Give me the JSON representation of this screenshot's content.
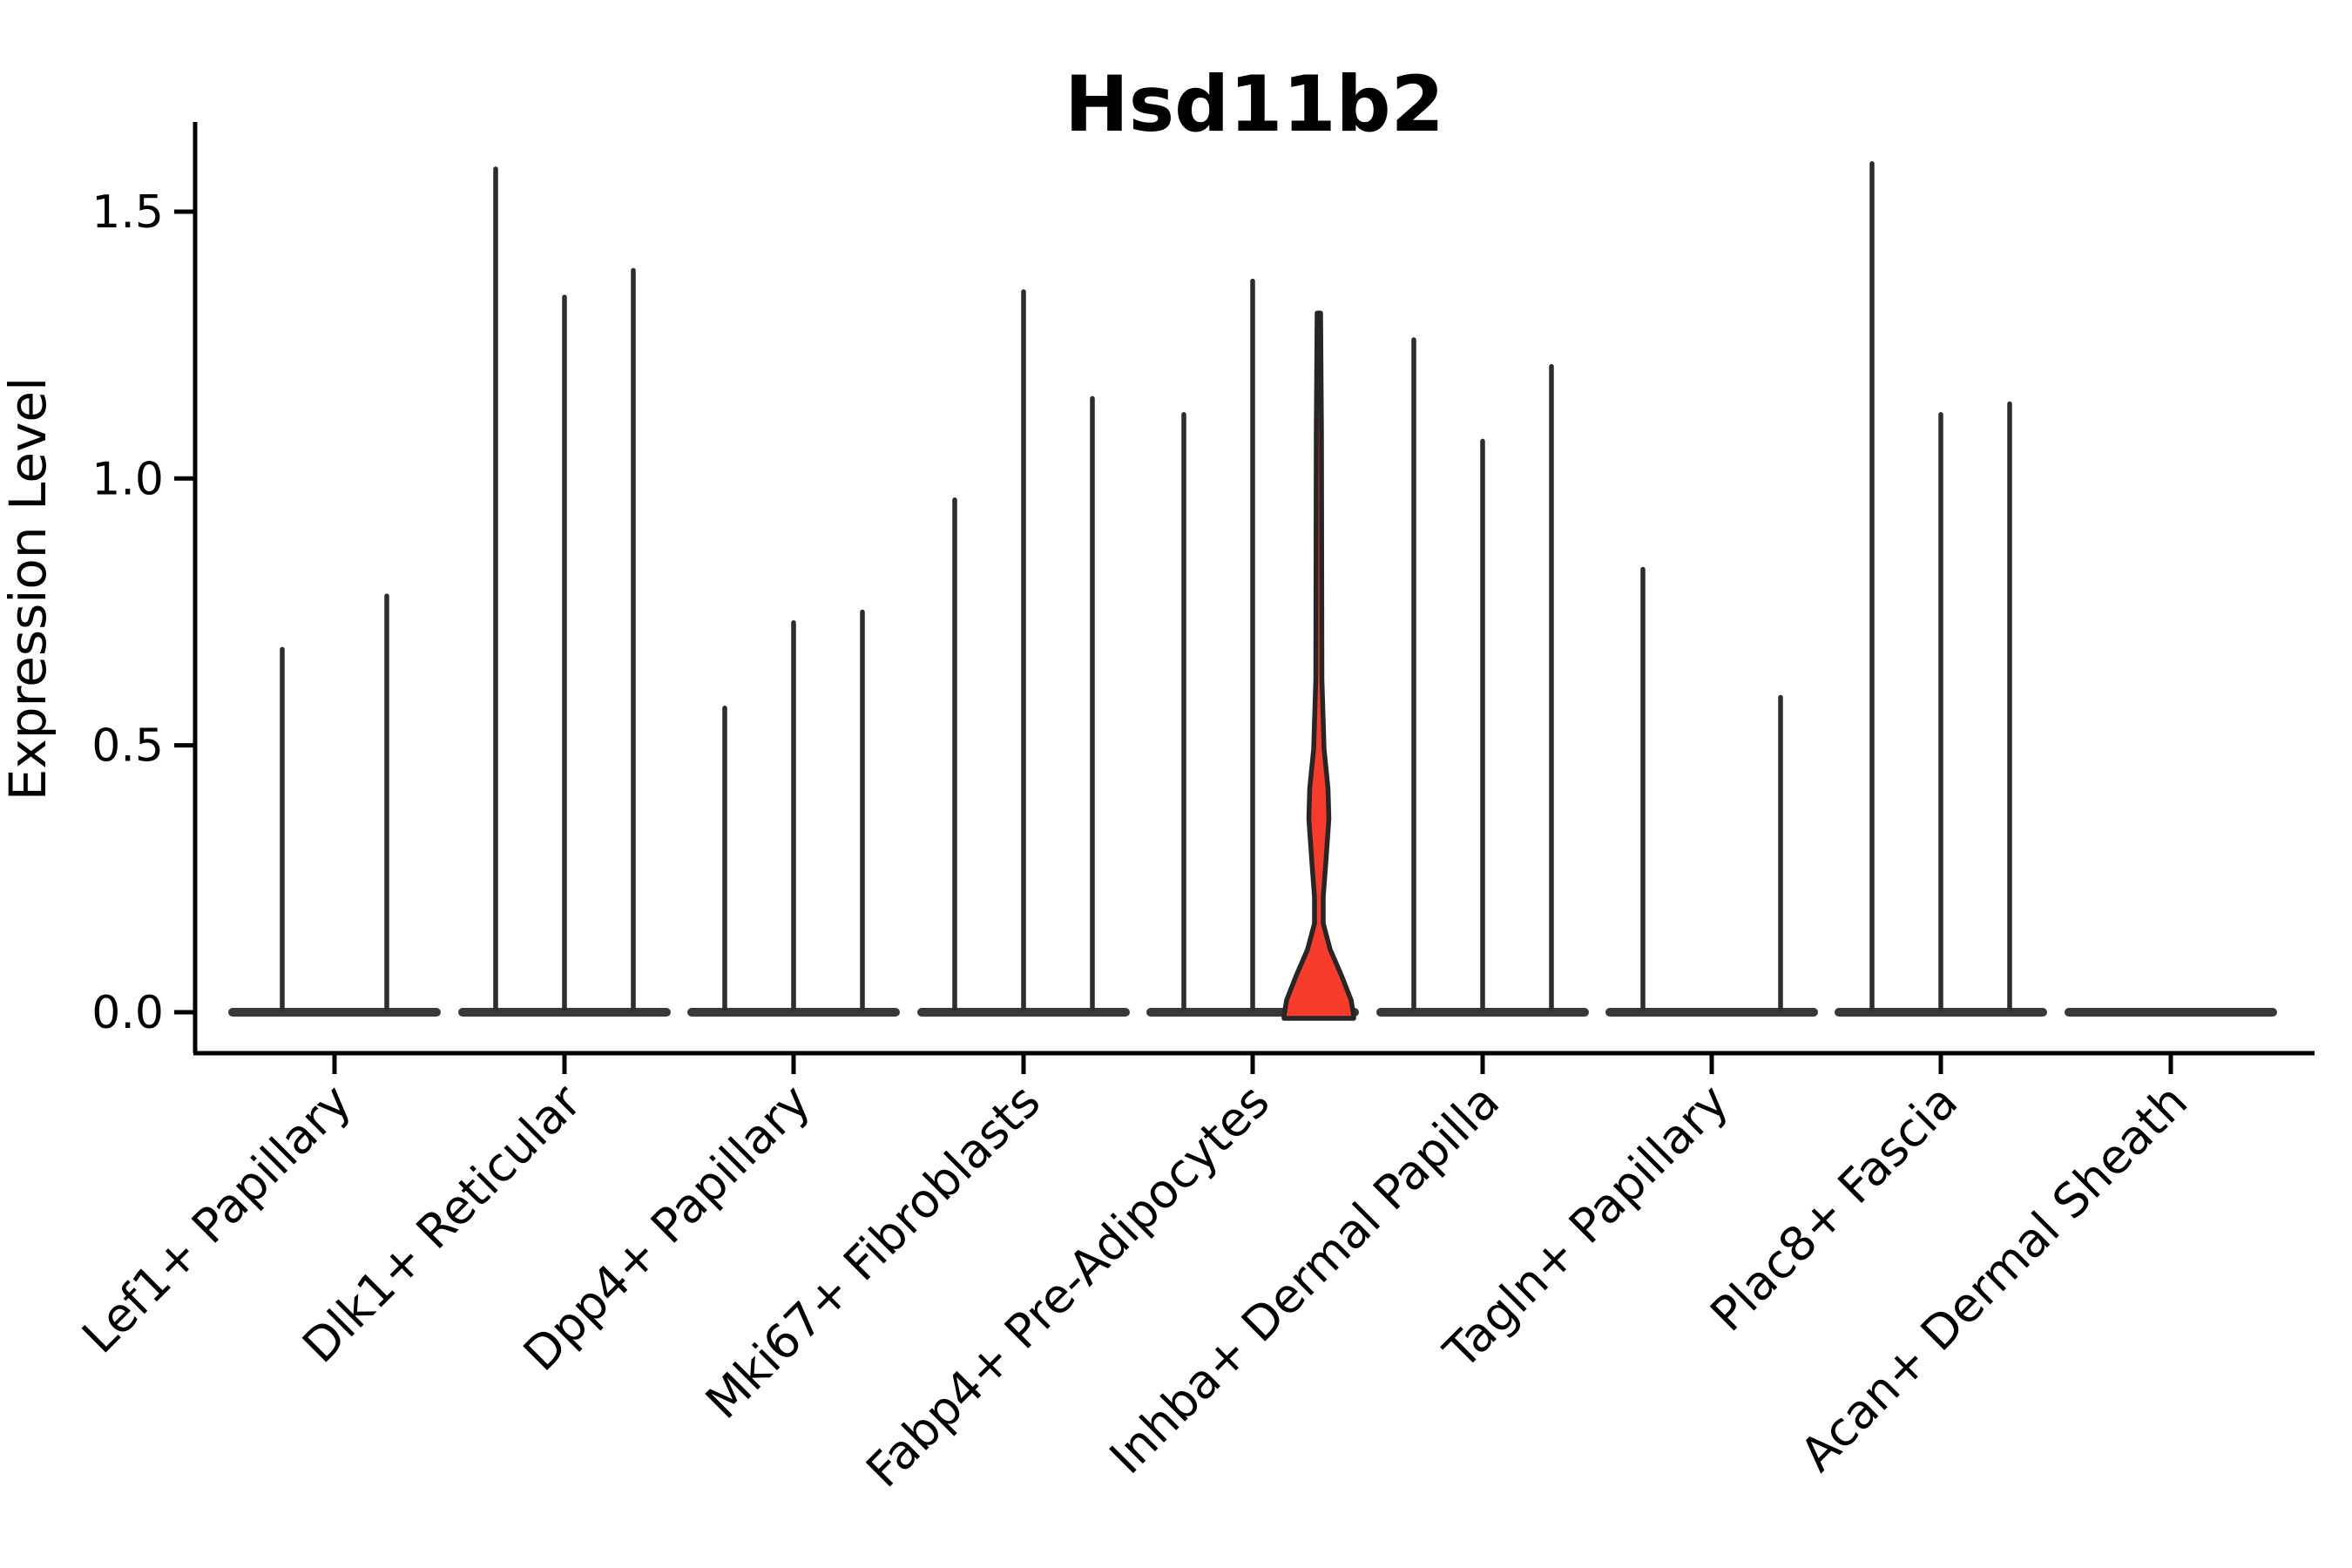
{
  "chart": {
    "title": "Hsd11b2",
    "ylabel": "Expression Level"
  },
  "chart_data": {
    "type": "violin",
    "title": "Hsd11b2",
    "xlabel": "",
    "ylabel": "Expression Level",
    "ylim": [
      -0.08,
      1.67
    ],
    "yticks": [
      "0.0",
      "0.5",
      "1.0",
      "1.5"
    ],
    "ytick_values": [
      0.0,
      0.5,
      1.0,
      1.5
    ],
    "grid": false,
    "legend": "none",
    "x_tick_rotation": 45,
    "categories": [
      "Lef1+ Papillary",
      "Dlk1+ Reticular",
      "Dpp4+ Papillary",
      "Mki67+ Fibroblasts",
      "Fabp4+ Pre-Adipocytes",
      "Inhba+ Dermal Papilla",
      "Tagln+ Papillary",
      "Plac8+ Fascia",
      "Acan+ Dermal Sheath"
    ],
    "description": "Stacked-by-group violin plot; every violin is massed at expression 0 (wide flat base) with a thin spike reaching its maximum expression value. One violin (3rd of Fabp4+ Pre-Adipocytes) is filled red and shows a visible density bulge around 0.27-0.47.",
    "groups": [
      {
        "category": "Lef1+ Papillary",
        "violins": [
          {
            "offset": -60,
            "max": 0.68
          },
          {
            "offset": 60,
            "max": 0.78
          }
        ]
      },
      {
        "category": "Dlk1+ Reticular",
        "violins": [
          {
            "offset": -79,
            "max": 1.58
          },
          {
            "offset": 0,
            "max": 1.34
          },
          {
            "offset": 79,
            "max": 1.39
          }
        ]
      },
      {
        "category": "Dpp4+ Papillary",
        "violins": [
          {
            "offset": -79,
            "max": 0.57
          },
          {
            "offset": 0,
            "max": 0.73
          },
          {
            "offset": 79,
            "max": 0.75
          }
        ]
      },
      {
        "category": "Mki67+ Fibroblasts",
        "violins": [
          {
            "offset": -79,
            "max": 0.96
          },
          {
            "offset": 0,
            "max": 1.35
          },
          {
            "offset": 79,
            "max": 1.15
          }
        ]
      },
      {
        "category": "Fabp4+ Pre-Adipocytes",
        "violins": [
          {
            "offset": -79,
            "max": 1.12
          },
          {
            "offset": 0,
            "max": 1.37
          },
          {
            "offset": 76,
            "max": 1.31,
            "highlight": true,
            "bulge_center": 0.36,
            "bulge_span": [
              0.21,
              0.51
            ]
          }
        ]
      },
      {
        "category": "Inhba+ Dermal Papilla",
        "violins": [
          {
            "offset": -79,
            "max": 1.26
          },
          {
            "offset": 0,
            "max": 1.07
          },
          {
            "offset": 79,
            "max": 1.21
          }
        ]
      },
      {
        "category": "Tagln+ Papillary",
        "violins": [
          {
            "offset": -79,
            "max": 0.83
          },
          {
            "offset": 0,
            "max": null
          },
          {
            "offset": 79,
            "max": 0.59
          }
        ]
      },
      {
        "category": "Plac8+ Fascia",
        "violins": [
          {
            "offset": -79,
            "max": 1.59
          },
          {
            "offset": 0,
            "max": 1.12
          },
          {
            "offset": 79,
            "max": 1.14
          }
        ]
      },
      {
        "category": "Acan+ Dermal Sheath",
        "violins": []
      }
    ],
    "colors": {
      "axis": "#000000",
      "text": "#000000",
      "spike": "#2d2d2d",
      "violin_base": "#383838",
      "highlight_fill": "#f83c2c",
      "highlight_outline": "#262626",
      "background": "#ffffff"
    }
  }
}
